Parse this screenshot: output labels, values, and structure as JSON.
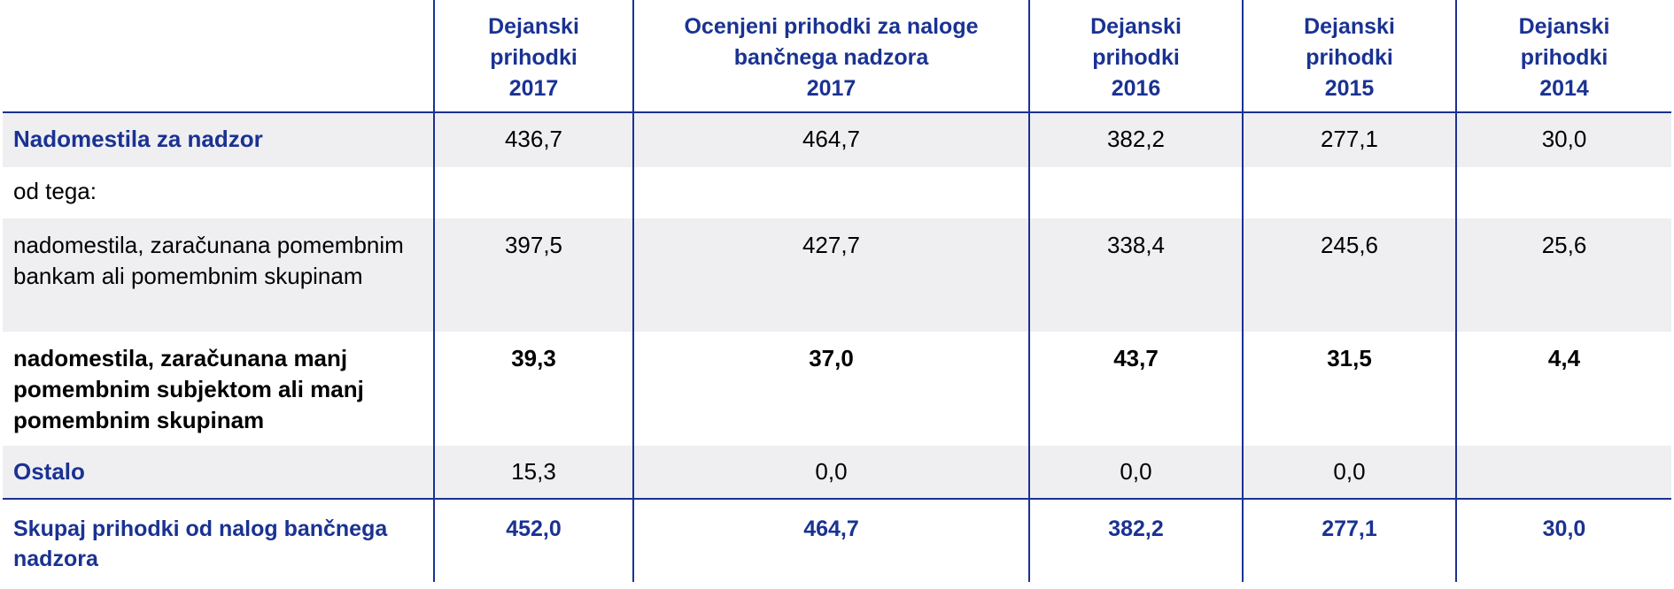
{
  "table": {
    "headers": [
      "",
      "Dejanski\nprihodki\n2017",
      "Ocenjeni prihodki za naloge\nbančnega nadzora\n2017",
      "Dejanski\nprihodki\n2016",
      "Dejanski\nprihodki\n2015",
      "Dejanski\nprihodki\n2014"
    ],
    "header_lines": [
      [],
      [
        "Dejanski",
        "prihodki",
        "2017"
      ],
      [
        "Ocenjeni prihodki za naloge",
        "bančnega nadzora",
        "2017"
      ],
      [
        "Dejanski",
        "prihodki",
        "2016"
      ],
      [
        "Dejanski",
        "prihodki",
        "2015"
      ],
      [
        "Dejanski",
        "prihodki",
        "2014"
      ]
    ],
    "rows": [
      {
        "label": "Nadomestila za nadzor",
        "values": [
          "436,7",
          "464,7",
          "382,2",
          "277,1",
          "30,0"
        ]
      },
      {
        "label": "od tega:",
        "values": [
          "",
          "",
          "",
          "",
          ""
        ]
      },
      {
        "label": "nadomestila, zaračunana pomembnim bankam ali pomembnim skupinam",
        "values": [
          "397,5",
          "427,7",
          "338,4",
          "245,6",
          "25,6"
        ]
      },
      {
        "label": "nadomestila, zaračunana manj pomembnim subjektom ali manj pomembnim skupinam",
        "values": [
          "39,3",
          "37,0",
          "43,7",
          "31,5",
          "4,4"
        ]
      },
      {
        "label": "Ostalo",
        "values": [
          "15,3",
          "0,0",
          "0,0",
          "0,0",
          ""
        ]
      },
      {
        "label": "Skupaj prihodki od nalog bančnega nadzora",
        "values": [
          "452,0",
          "464,7",
          "382,2",
          "277,1",
          "30,0"
        ]
      }
    ]
  },
  "colors": {
    "accent_blue": "#1a3292",
    "row_shade": "#efeff2"
  }
}
